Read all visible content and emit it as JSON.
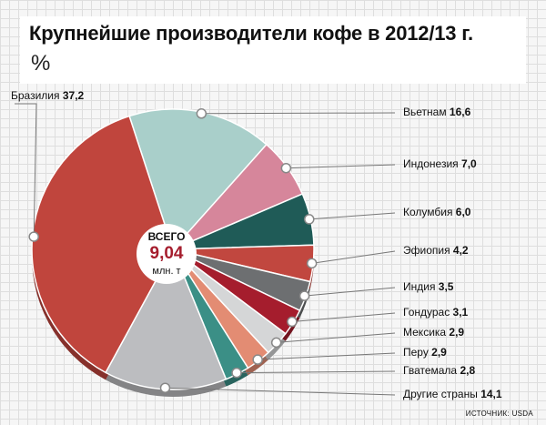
{
  "header": {
    "title": "Крупнейшие производители кофе в 2012/13 г.",
    "unit": "%"
  },
  "center": {
    "label_top": "ВСЕГО",
    "value": "9,04",
    "label_bottom": "млн. т"
  },
  "source": "ИСТОЧНИК: USDA",
  "chart_data": {
    "type": "pie",
    "title": "Крупнейшие производители кофе в 2012/13 г.",
    "unit": "%",
    "total": "9,04 млн. т",
    "slices": [
      {
        "name": "Вьетнам",
        "value": 16.6,
        "label": "16,6",
        "color": "#a9cfca"
      },
      {
        "name": "Индонезия",
        "value": 7.0,
        "label": "7,0",
        "color": "#d6869b"
      },
      {
        "name": "Колумбия",
        "value": 6.0,
        "label": "6,0",
        "color": "#1f5b57"
      },
      {
        "name": "Эфиопия",
        "value": 4.2,
        "label": "4,2",
        "color": "#c1473f"
      },
      {
        "name": "Индия",
        "value": 3.5,
        "label": "3,5",
        "color": "#6d6f71"
      },
      {
        "name": "Гондурас",
        "value": 3.1,
        "label": "3,1",
        "color": "#a51d2d"
      },
      {
        "name": "Мексика",
        "value": 2.9,
        "label": "2,9",
        "color": "#d5d6d7"
      },
      {
        "name": "Перу",
        "value": 2.9,
        "label": "2,9",
        "color": "#e38c73"
      },
      {
        "name": "Гватемала",
        "value": 2.8,
        "label": "2,8",
        "color": "#3b8f86"
      },
      {
        "name": "Другие страны",
        "value": 14.1,
        "label": "14,1",
        "color": "#bcbdc0"
      },
      {
        "name": "Бразилия",
        "value": 37.2,
        "label": "37,2",
        "color": "#c0453d"
      }
    ]
  }
}
